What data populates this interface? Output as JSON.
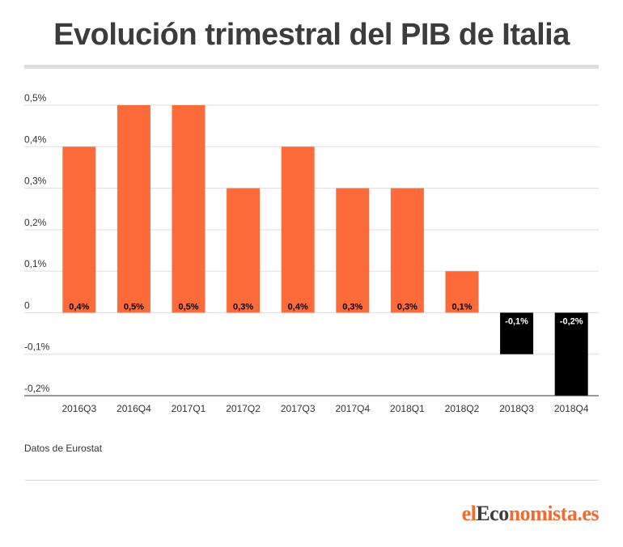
{
  "header": {
    "title": "Evolución trimestral del PIB de Italia"
  },
  "footer": {
    "source": "Datos de Eurostat",
    "logo_part1": "el",
    "logo_part2": "Eco",
    "logo_part3": "nomista.es"
  },
  "colors": {
    "positive": "#fd6b3a",
    "negative": "#000000",
    "grid": "#dddddd"
  },
  "chart_data": {
    "type": "bar",
    "title": "Evolución trimestral del PIB de Italia",
    "xlabel": "",
    "ylabel": "",
    "categories": [
      "2016Q3",
      "2016Q4",
      "2017Q1",
      "2017Q2",
      "2017Q3",
      "2017Q4",
      "2018Q1",
      "2018Q2",
      "2018Q3",
      "2018Q4"
    ],
    "values": [
      0.4,
      0.5,
      0.5,
      0.3,
      0.4,
      0.3,
      0.3,
      0.1,
      -0.1,
      -0.2
    ],
    "data_labels": [
      "0,4%",
      "0,5%",
      "0,5%",
      "0,3%",
      "0,4%",
      "0,3%",
      "0,3%",
      "0,1%",
      "-0,1%",
      "-0,2%"
    ],
    "yticks": [
      0.5,
      0.4,
      0.3,
      0.2,
      0.1,
      0,
      -0.1,
      -0.2
    ],
    "ytick_labels": [
      "0,5%",
      "0,4%",
      "0,3%",
      "0,2%",
      "0,1%",
      "0",
      "-0,1%",
      "-0,2%"
    ],
    "ylim": [
      -0.2,
      0.5
    ],
    "grid": true,
    "legend": "none"
  }
}
